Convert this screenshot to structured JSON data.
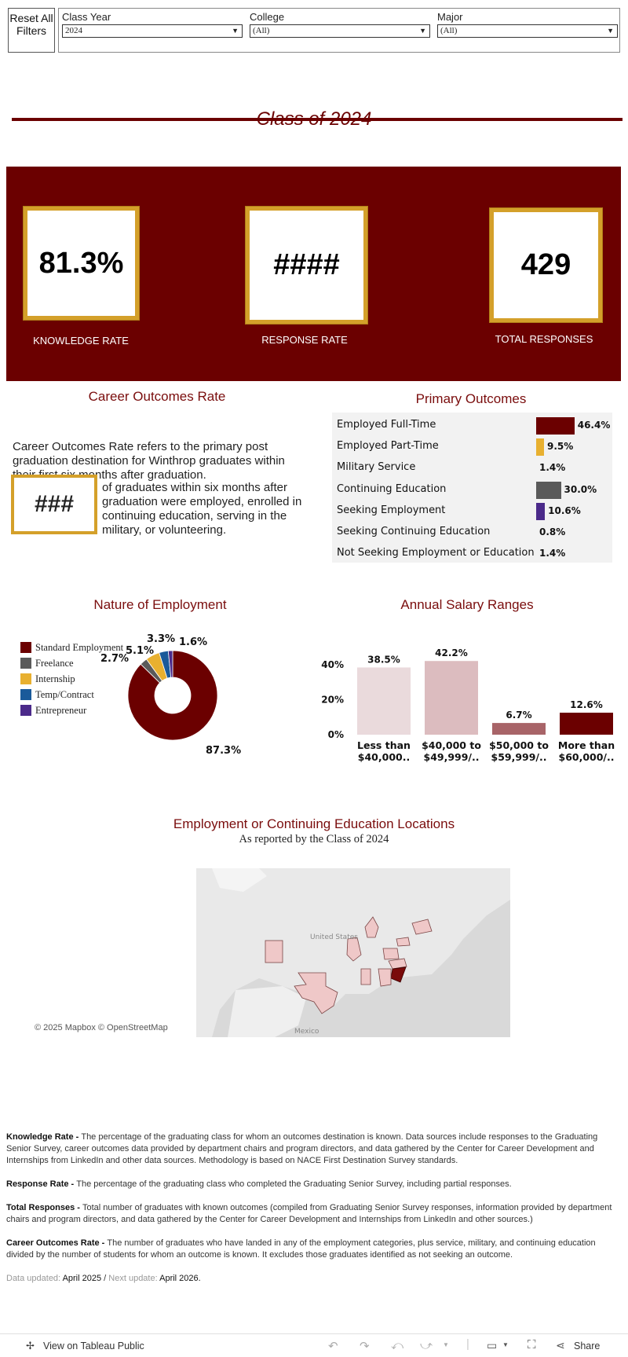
{
  "filters": {
    "reset_label": "Reset All Filters",
    "class_year": {
      "label": "Class Year",
      "value": "2024"
    },
    "college": {
      "label": "College",
      "value": "(All)"
    },
    "major": {
      "label": "Major",
      "value": "(All)"
    }
  },
  "title": "Class of 2024",
  "kpis": {
    "knowledge_rate": {
      "value": "81.3%",
      "label": "KNOWLEDGE RATE"
    },
    "response_rate": {
      "value": "####",
      "label": "RESPONSE RATE"
    },
    "total_responses": {
      "value": "429",
      "label": "TOTAL RESPONSES"
    }
  },
  "career_outcomes": {
    "title": "Career Outcomes Rate",
    "intro": "Career Outcomes Rate refers to the primary post graduation destination for Winthrop graduates within their first six months after graduation.",
    "value": "###",
    "description": "of graduates within six months after graduation were employed, enrolled in continuing education, serving in the military, or volunteering."
  },
  "primary_outcomes": {
    "title": "Primary Outcomes"
  },
  "nature_of_employment": {
    "title": "Nature of Employment"
  },
  "salary": {
    "title": "Annual Salary Ranges"
  },
  "map": {
    "title": "Employment or Continuing Education Locations",
    "subtitle": "As reported by the Class of 2024",
    "label_us": "United States",
    "label_mexico": "Mexico",
    "attribution": "© 2025 Mapbox  © OpenStreetMap"
  },
  "footer": {
    "knowledge_term": "Knowledge Rate - ",
    "knowledge_def": "The percentage of the graduating class for whom an outcomes destination is known. Data sources include responses to the Graduating Senior Survey, career outcomes data provided by department chairs and program directors, and data gathered by the Center for Career Development and Internships from LinkedIn and other data sources. Methodology is based on NACE First Destination Survey standards.",
    "response_term": "Response Rate - ",
    "response_def": "The percentage of the graduating class who completed the Graduating Senior Survey, including partial responses.",
    "total_term": "Total Responses - ",
    "total_def": "Total number of graduates with known outcomes (compiled from Graduating Senior Survey responses, information provided by department chairs and program directors, and data gathered by the Center for Career Development and Internships from LinkedIn and other sources.)",
    "cor_term": "Career Outcomes Rate - ",
    "cor_def": "The number of graduates who have landed in any of the employment categories, plus service, military, and continuing education divided by the number of students for whom an outcome is known.  It excludes those graduates identified as not seeking an outcome.",
    "updated_label": "Data updated: ",
    "updated_value": "April 2025",
    "sep": " / ",
    "next_label": "Next update: ",
    "next_value": "April 2026."
  },
  "toolbar": {
    "view_label": "View on Tableau Public",
    "share_label": "Share"
  },
  "colors": {
    "maroon": "#6b0000",
    "gold": "#d4a02a",
    "grey": "#5a5a5a",
    "blue": "#1a5a9a",
    "purple": "#4b2a8a"
  },
  "chart_data": [
    {
      "type": "bar",
      "title": "Primary Outcomes",
      "orientation": "horizontal",
      "categories": [
        "Employed Full-Time",
        "Employed Part-Time",
        "Military Service",
        "Continuing Education",
        "Seeking Employment",
        "Seeking Continuing Education",
        "Not Seeking Employment or Education"
      ],
      "values": [
        46.4,
        9.5,
        1.4,
        30.0,
        10.6,
        0.8,
        1.4
      ],
      "labels": [
        "46.4%",
        "9.5%",
        "1.4%",
        "30.0%",
        "10.6%",
        "0.8%",
        "1.4%"
      ],
      "colors": [
        "#6b0000",
        "#e8b030",
        "",
        "#5a5a5a",
        "#4b2a8a",
        "",
        ""
      ]
    },
    {
      "type": "pie",
      "title": "Nature of Employment",
      "categories": [
        "Standard Employment",
        "Freelance",
        "Internship",
        "Temp/Contract",
        "Entrepreneur"
      ],
      "values": [
        87.3,
        2.7,
        5.1,
        3.3,
        1.6
      ],
      "labels": [
        "87.3%",
        "2.7%",
        "5.1%",
        "3.3%",
        "1.6%"
      ],
      "colors": [
        "#6b0000",
        "#5a5a5a",
        "#e8b030",
        "#1a5a9a",
        "#4b2a8a"
      ]
    },
    {
      "type": "bar",
      "title": "Annual Salary Ranges",
      "categories": [
        "Less than $40,000..",
        "$40,000 to $49,999/..",
        "$50,000 to $59,999/..",
        "More than $60,000/.."
      ],
      "values": [
        38.5,
        42.2,
        6.7,
        12.6
      ],
      "labels": [
        "38.5%",
        "42.2%",
        "6.7%",
        "12.6%"
      ],
      "colors": [
        "#eadadc",
        "#dcbcbf",
        "#a86468",
        "#6b0000"
      ],
      "yticks": [
        "40%",
        "20%",
        "0%"
      ],
      "ylim": [
        0,
        45
      ]
    }
  ]
}
